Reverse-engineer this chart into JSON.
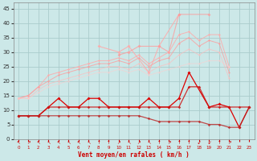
{
  "x": [
    0,
    1,
    2,
    3,
    4,
    5,
    6,
    7,
    8,
    9,
    10,
    11,
    12,
    13,
    14,
    15,
    16,
    17,
    18,
    19,
    20,
    21,
    22,
    23
  ],
  "line_jagged1": [
    null,
    null,
    null,
    null,
    null,
    null,
    null,
    null,
    32,
    null,
    30,
    32,
    null,
    23,
    32,
    null,
    43,
    null,
    null,
    null,
    null,
    null,
    null,
    null
  ],
  "line_jagged2": [
    null,
    null,
    null,
    null,
    null,
    null,
    null,
    null,
    null,
    null,
    29,
    30,
    32,
    null,
    32,
    30,
    43,
    null,
    null,
    43,
    null,
    null,
    null,
    null
  ],
  "line_trend1": [
    14,
    15,
    18,
    22,
    23,
    24,
    25,
    26,
    27,
    27,
    28,
    27,
    29,
    26,
    28,
    30,
    36,
    37,
    34,
    36,
    36,
    25,
    null,
    null
  ],
  "line_trend2": [
    14,
    15,
    18,
    20,
    22,
    23,
    24,
    25,
    26,
    26,
    27,
    26,
    28,
    25,
    27,
    28,
    33,
    35,
    32,
    34,
    33,
    23,
    null,
    null
  ],
  "line_trend3": [
    14,
    14,
    17,
    19,
    20,
    21,
    22,
    23,
    24,
    25,
    25,
    24,
    26,
    23,
    25,
    26,
    29,
    31,
    29,
    31,
    30,
    21,
    null,
    null
  ],
  "line_flat1": [
    14,
    14,
    16,
    18,
    19,
    20,
    21,
    22,
    23,
    23,
    24,
    23,
    24,
    22,
    23,
    24,
    25,
    26,
    26,
    27,
    27,
    25,
    null,
    null
  ],
  "line_dark1": [
    8,
    8,
    8,
    11,
    14,
    11,
    11,
    14,
    14,
    11,
    11,
    11,
    11,
    14,
    11,
    11,
    14,
    23,
    null,
    11,
    12,
    11,
    4,
    11
  ],
  "line_dark2": [
    8,
    8,
    8,
    11,
    11,
    11,
    11,
    11,
    11,
    11,
    11,
    11,
    11,
    11,
    11,
    11,
    11,
    18,
    18,
    11,
    11,
    11,
    11,
    11
  ],
  "line_dark3": [
    8,
    8,
    8,
    8,
    8,
    8,
    8,
    8,
    8,
    8,
    8,
    8,
    8,
    7,
    6,
    6,
    6,
    6,
    6,
    5,
    5,
    4,
    4,
    11
  ],
  "bg_color": "#cce8e8",
  "grid_color": "#aacccc",
  "color_light1": "#ffaaaa",
  "color_light2": "#ff9999",
  "color_light3": "#ffbbbb",
  "color_light4": "#ffcccc",
  "color_dark1": "#dd0000",
  "color_dark2": "#cc1111",
  "color_dark3": "#bb2222",
  "ylabel_ticks": [
    0,
    5,
    10,
    15,
    20,
    25,
    30,
    35,
    40,
    45
  ],
  "xlabel": "Vent moyen/en rafales ( km/h )",
  "wind_arrows": [
    "↖",
    "↗",
    "↖",
    "↖",
    "↖",
    "↖",
    "↖",
    "↖",
    "↑",
    "↑",
    "↗",
    "↖",
    "↗",
    "↖",
    "↑",
    "↗",
    "↑",
    "↑",
    "↙",
    "↙",
    "↑",
    "↗",
    "",
    ""
  ],
  "figsize": [
    3.2,
    2.0
  ],
  "dpi": 100
}
